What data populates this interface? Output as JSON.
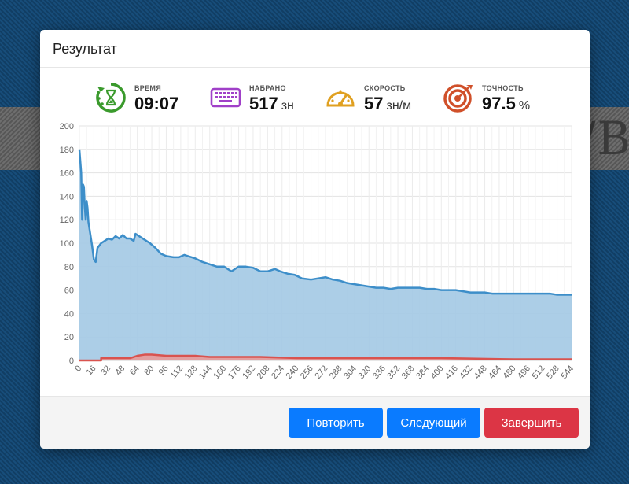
{
  "background": {
    "text": "/B"
  },
  "modal": {
    "title": "Результат",
    "stats": [
      {
        "label": "ВРЕМЯ",
        "value": "09:07",
        "unit": "",
        "icon": "hourglass-timer-icon",
        "color": "#3a9a2c"
      },
      {
        "label": "НАБРАНО",
        "value": "517",
        "unit": "зн",
        "icon": "keyboard-icon",
        "color": "#a040c8"
      },
      {
        "label": "СКОРОСТЬ",
        "value": "57",
        "unit": "зн/м",
        "icon": "speedometer-icon",
        "color": "#e0a020"
      },
      {
        "label": "ТОЧНОСТЬ",
        "value": "97.5",
        "unit": "%",
        "icon": "target-icon",
        "color": "#d0502a"
      }
    ],
    "buttons": {
      "repeat": "Повторить",
      "next": "Следующий",
      "finish": "Завершить"
    }
  },
  "chart_data": {
    "type": "area",
    "ylim": [
      0,
      200
    ],
    "y_ticks": [
      0,
      20,
      40,
      60,
      80,
      100,
      120,
      140,
      160,
      180,
      200
    ],
    "x_ticks": [
      "0",
      "16",
      "32",
      "48",
      "64",
      "80",
      "96",
      "112",
      "128",
      "144",
      "160",
      "176",
      "192",
      "208",
      "224",
      "240",
      "256",
      "272",
      "288",
      "304",
      "320",
      "336",
      "352",
      "368",
      "384",
      "400",
      "416",
      "432",
      "448",
      "464",
      "480",
      "496",
      "512",
      "528",
      "544"
    ],
    "grid": true,
    "x_max": 544,
    "series": [
      {
        "color": "#3d8ec9",
        "fill": "#a3c9e4",
        "points": [
          [
            0,
            180
          ],
          [
            2,
            160
          ],
          [
            3,
            120
          ],
          [
            4,
            150
          ],
          [
            5,
            148
          ],
          [
            6,
            130
          ],
          [
            7,
            120
          ],
          [
            8,
            136
          ],
          [
            9,
            130
          ],
          [
            10,
            118
          ],
          [
            12,
            108
          ],
          [
            14,
            98
          ],
          [
            16,
            86
          ],
          [
            18,
            84
          ],
          [
            20,
            96
          ],
          [
            24,
            100
          ],
          [
            28,
            102
          ],
          [
            32,
            104
          ],
          [
            36,
            103
          ],
          [
            40,
            106
          ],
          [
            44,
            104
          ],
          [
            48,
            107
          ],
          [
            52,
            104
          ],
          [
            56,
            104
          ],
          [
            60,
            102
          ],
          [
            62,
            108
          ],
          [
            66,
            106
          ],
          [
            72,
            103
          ],
          [
            78,
            100
          ],
          [
            84,
            96
          ],
          [
            90,
            91
          ],
          [
            96,
            89
          ],
          [
            104,
            88
          ],
          [
            110,
            88
          ],
          [
            116,
            90
          ],
          [
            120,
            89
          ],
          [
            128,
            87
          ],
          [
            136,
            84
          ],
          [
            144,
            82
          ],
          [
            152,
            80
          ],
          [
            160,
            80
          ],
          [
            164,
            78
          ],
          [
            168,
            76
          ],
          [
            176,
            80
          ],
          [
            184,
            80
          ],
          [
            192,
            79
          ],
          [
            200,
            76
          ],
          [
            208,
            76
          ],
          [
            216,
            78
          ],
          [
            222,
            76
          ],
          [
            230,
            74
          ],
          [
            238,
            73
          ],
          [
            246,
            70
          ],
          [
            256,
            69
          ],
          [
            264,
            70
          ],
          [
            272,
            71
          ],
          [
            280,
            69
          ],
          [
            288,
            68
          ],
          [
            296,
            66
          ],
          [
            304,
            65
          ],
          [
            312,
            64
          ],
          [
            320,
            63
          ],
          [
            328,
            62
          ],
          [
            336,
            62
          ],
          [
            344,
            61
          ],
          [
            352,
            62
          ],
          [
            360,
            62
          ],
          [
            368,
            62
          ],
          [
            376,
            62
          ],
          [
            384,
            61
          ],
          [
            392,
            61
          ],
          [
            400,
            60
          ],
          [
            408,
            60
          ],
          [
            416,
            60
          ],
          [
            424,
            59
          ],
          [
            432,
            58
          ],
          [
            440,
            58
          ],
          [
            448,
            58
          ],
          [
            456,
            57
          ],
          [
            464,
            57
          ],
          [
            472,
            57
          ],
          [
            480,
            57
          ],
          [
            488,
            57
          ],
          [
            496,
            57
          ],
          [
            504,
            57
          ],
          [
            512,
            57
          ],
          [
            520,
            57
          ],
          [
            528,
            56
          ],
          [
            536,
            56
          ],
          [
            544,
            56
          ]
        ]
      },
      {
        "color": "#d9534f",
        "fill": "#e99a98",
        "points": [
          [
            0,
            0
          ],
          [
            24,
            0
          ],
          [
            24,
            2
          ],
          [
            40,
            2
          ],
          [
            56,
            2
          ],
          [
            64,
            4
          ],
          [
            72,
            5
          ],
          [
            80,
            5
          ],
          [
            96,
            4
          ],
          [
            112,
            4
          ],
          [
            128,
            4
          ],
          [
            144,
            3
          ],
          [
            160,
            3
          ],
          [
            200,
            3
          ],
          [
            240,
            2
          ],
          [
            280,
            2
          ],
          [
            320,
            2
          ],
          [
            400,
            2
          ],
          [
            480,
            1
          ],
          [
            544,
            1
          ]
        ]
      }
    ]
  }
}
